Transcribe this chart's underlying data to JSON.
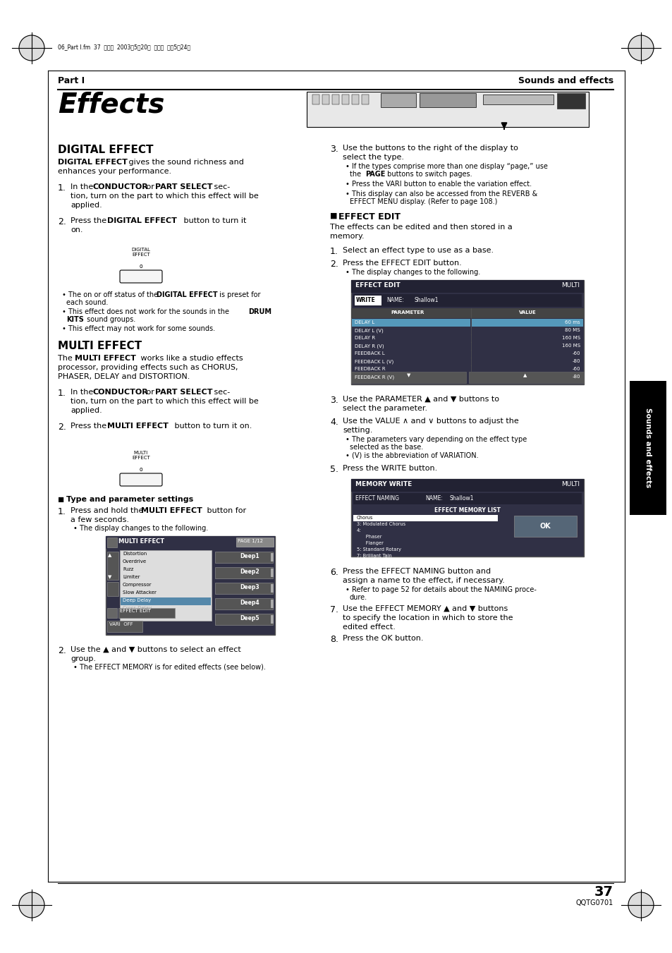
{
  "bg_color": "#ffffff",
  "page_number": "37",
  "page_code": "QQTG0701",
  "sidebar_text": "Sounds and effects"
}
